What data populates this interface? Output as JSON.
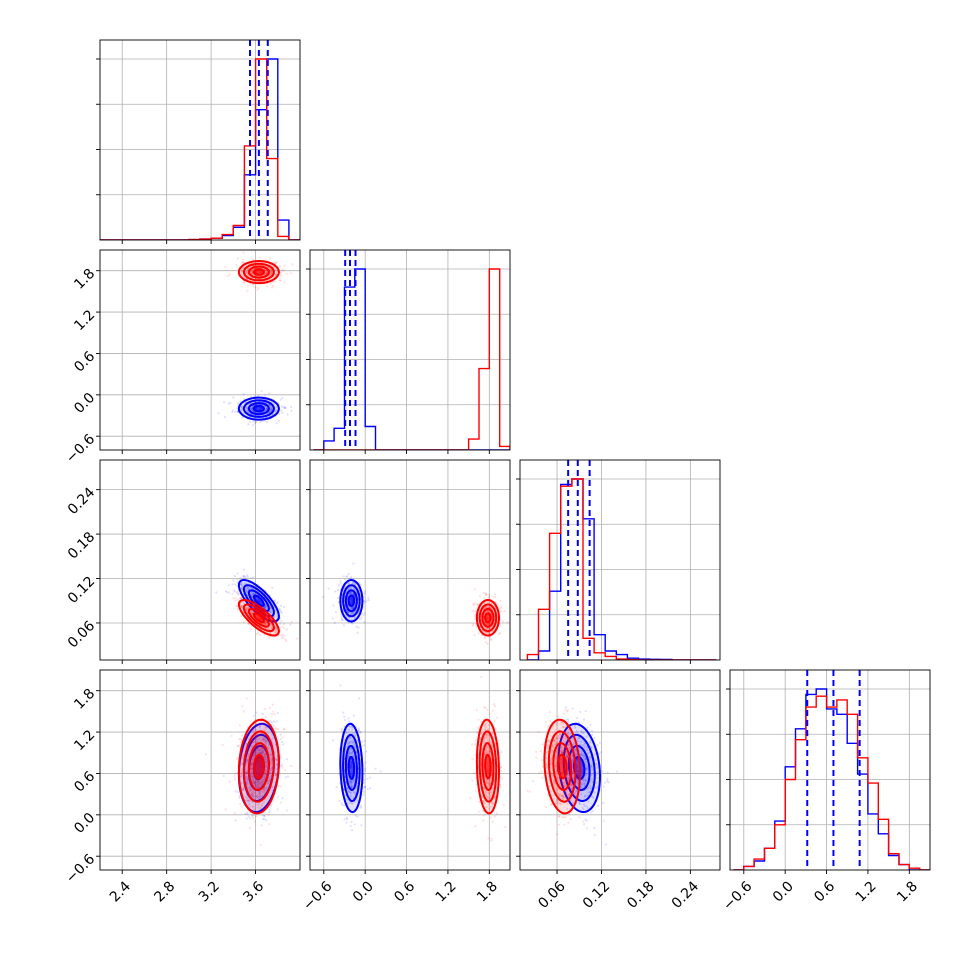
{
  "colors": {
    "blue": "#0000ff",
    "red": "#ff0000",
    "grid": "#b0b0b0",
    "axes": "#000000"
  },
  "chart_data": {
    "type": "corner",
    "description_series": [
      "blue",
      "red"
    ],
    "params": [
      {
        "range": [
          2.2,
          4.0
        ],
        "ticks": [
          2.4,
          2.8,
          3.2,
          3.6
        ],
        "tick_labels": [
          "2.4",
          "2.8",
          "3.2",
          "3.6"
        ]
      },
      {
        "range": [
          -0.8,
          2.1
        ],
        "ticks": [
          -0.6,
          0.0,
          0.6,
          1.2,
          1.8
        ],
        "tick_labels": [
          "−0.6",
          "0.0",
          "0.6",
          "1.2",
          "1.8"
        ]
      },
      {
        "range": [
          0.01,
          0.28
        ],
        "ticks": [
          0.06,
          0.12,
          0.18,
          0.24
        ],
        "tick_labels": [
          "0.06",
          "0.12",
          "0.18",
          "0.24"
        ]
      },
      {
        "range": [
          -0.8,
          2.1
        ],
        "ticks": [
          -0.6,
          0.0,
          0.6,
          1.2,
          1.8
        ],
        "tick_labels": [
          "−0.6",
          "0.0",
          "0.6",
          "1.2",
          "1.8"
        ]
      }
    ],
    "series": [
      {
        "name": "blue",
        "quantiles": [
          [
            3.55,
            3.63,
            3.71
          ],
          [
            -0.29,
            -0.22,
            -0.14
          ],
          [
            0.075,
            0.088,
            0.104
          ],
          [
            0.32,
            0.7,
            1.08
          ]
        ],
        "means": [
          3.63,
          -0.2,
          0.09,
          0.68
        ],
        "sds": [
          0.09,
          0.08,
          0.014,
          0.32
        ],
        "corr": [
          [
            1,
            0,
            -0.75,
            0.15
          ],
          [
            0,
            1,
            0,
            -0.1
          ],
          [
            -0.75,
            0,
            1,
            -0.2
          ],
          [
            0.15,
            -0.1,
            -0.2,
            1
          ]
        ],
        "hists": [
          {
            "edges": [
              2.2,
              2.3,
              2.4,
              2.5,
              2.6,
              2.7,
              2.8,
              2.9,
              3.0,
              3.1,
              3.2,
              3.3,
              3.4,
              3.5,
              3.6,
              3.7,
              3.8,
              3.9,
              4.0
            ],
            "counts": [
              0,
              0,
              0,
              0,
              0,
              0,
              0,
              0,
              0.002,
              0.005,
              0.01,
              0.025,
              0.07,
              0.36,
              0.72,
              1.0,
              0.11,
              0.0
            ]
          },
          {
            "edges": [
              -0.75,
              -0.6,
              -0.45,
              -0.3,
              -0.15,
              0.0,
              0.15,
              0.3,
              0.45,
              0.6,
              0.75,
              0.9,
              1.05,
              1.2,
              1.35,
              1.5,
              1.65,
              1.8,
              1.95,
              2.1
            ],
            "counts": [
              0,
              0.05,
              0.12,
              0.9,
              1.0,
              0.13,
              0,
              0,
              0,
              0,
              0,
              0,
              0,
              0,
              0,
              0,
              0,
              0,
              0
            ]
          },
          {
            "edges": [
              0.02,
              0.035,
              0.05,
              0.065,
              0.08,
              0.095,
              0.11,
              0.125,
              0.14,
              0.155,
              0.17,
              0.185,
              0.2,
              0.215,
              0.23,
              0.245,
              0.26,
              0.275
            ],
            "counts": [
              0.0,
              0.05,
              0.38,
              0.97,
              1.0,
              0.78,
              0.14,
              0.05,
              0.03,
              0.01,
              0.005,
              0.004,
              0.003,
              0,
              0,
              0,
              0
            ]
          },
          {
            "edges": [
              -0.75,
              -0.6,
              -0.45,
              -0.3,
              -0.15,
              0.0,
              0.15,
              0.3,
              0.45,
              0.6,
              0.75,
              0.9,
              1.05,
              1.2,
              1.35,
              1.5,
              1.65,
              1.8,
              1.95,
              2.1
            ],
            "counts": [
              0.0,
              0.02,
              0.05,
              0.12,
              0.27,
              0.57,
              0.78,
              0.97,
              1.0,
              0.89,
              0.86,
              0.7,
              0.53,
              0.31,
              0.2,
              0.08,
              0.03,
              0.0,
              0
            ]
          }
        ]
      },
      {
        "name": "red",
        "quantiles": [],
        "means": [
          3.63,
          1.78,
          0.067,
          0.7
        ],
        "sds": [
          0.09,
          0.08,
          0.012,
          0.34
        ],
        "corr": [
          [
            1,
            0,
            -0.75,
            0.1
          ],
          [
            0,
            1,
            0,
            -0.1
          ],
          [
            -0.75,
            0,
            1,
            -0.15
          ],
          [
            0.1,
            -0.1,
            -0.15,
            1
          ]
        ],
        "hists": [
          {
            "edges": [
              2.2,
              2.3,
              2.4,
              2.5,
              2.6,
              2.7,
              2.8,
              2.9,
              3.0,
              3.1,
              3.2,
              3.3,
              3.4,
              3.5,
              3.6,
              3.7,
              3.8,
              3.9,
              4.0
            ],
            "counts": [
              0,
              0,
              0,
              0,
              0,
              0,
              0,
              0,
              0.002,
              0.005,
              0.01,
              0.03,
              0.08,
              0.52,
              1.0,
              0.45,
              0.02,
              0.0
            ]
          },
          {
            "edges": [
              -0.75,
              -0.6,
              -0.45,
              -0.3,
              -0.15,
              0.0,
              0.15,
              0.3,
              0.45,
              0.6,
              0.75,
              0.9,
              1.05,
              1.2,
              1.35,
              1.5,
              1.65,
              1.8,
              1.95,
              2.1
            ],
            "counts": [
              0,
              0,
              0,
              0,
              0,
              0,
              0,
              0,
              0,
              0,
              0,
              0,
              0,
              0,
              0,
              0.06,
              0.45,
              1.0,
              0.02
            ]
          },
          {
            "edges": [
              0.02,
              0.035,
              0.05,
              0.065,
              0.08,
              0.095,
              0.11,
              0.125,
              0.14,
              0.155,
              0.17,
              0.185,
              0.2,
              0.215,
              0.23,
              0.245,
              0.26,
              0.275
            ],
            "counts": [
              0.03,
              0.28,
              0.7,
              0.96,
              1.0,
              0.12,
              0.04,
              0.02,
              0.005,
              0.002,
              0,
              0,
              0,
              0,
              0,
              0,
              0
            ]
          },
          {
            "edges": [
              -0.75,
              -0.6,
              -0.45,
              -0.3,
              -0.15,
              0.0,
              0.15,
              0.3,
              0.45,
              0.6,
              0.75,
              0.9,
              1.05,
              1.2,
              1.35,
              1.5,
              1.65,
              1.8,
              1.95,
              2.1
            ],
            "counts": [
              0.0,
              0.02,
              0.06,
              0.12,
              0.25,
              0.5,
              0.72,
              0.9,
              0.96,
              0.9,
              0.94,
              0.86,
              0.62,
              0.48,
              0.28,
              0.09,
              0.03,
              0.01,
              0
            ]
          }
        ]
      }
    ],
    "grid": true,
    "xlabel": "",
    "ylabel": "",
    "title": ""
  }
}
